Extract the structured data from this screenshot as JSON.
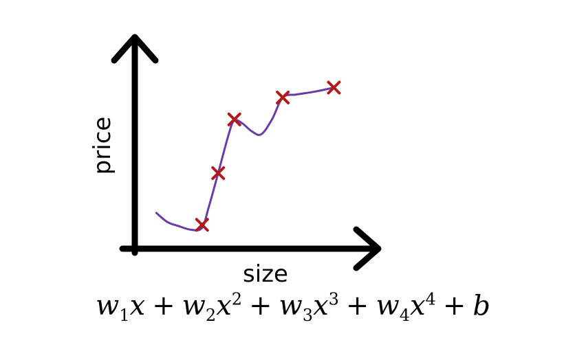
{
  "chart_data": {
    "type": "scatter",
    "xlabel": "size",
    "ylabel": "price",
    "points": [
      {
        "x": 1.0,
        "y": 0.2
      },
      {
        "x": 1.6,
        "y": 2.8
      },
      {
        "x": 2.2,
        "y": 5.5
      },
      {
        "x": 4.0,
        "y": 6.6
      },
      {
        "x": 5.9,
        "y": 7.1
      }
    ],
    "fit_curve": [
      {
        "x": -0.7,
        "y": 0.8
      },
      {
        "x": -0.3,
        "y": 0.35
      },
      {
        "x": 0.1,
        "y": 0.15
      },
      {
        "x": 0.6,
        "y": -0.05
      },
      {
        "x": 1.0,
        "y": 0.05
      },
      {
        "x": 1.25,
        "y": 1.1
      },
      {
        "x": 1.6,
        "y": 2.8
      },
      {
        "x": 2.0,
        "y": 4.8
      },
      {
        "x": 2.2,
        "y": 5.45
      },
      {
        "x": 2.5,
        "y": 5.3
      },
      {
        "x": 2.85,
        "y": 4.9
      },
      {
        "x": 3.2,
        "y": 4.75
      },
      {
        "x": 3.6,
        "y": 5.5
      },
      {
        "x": 4.0,
        "y": 6.6
      },
      {
        "x": 4.5,
        "y": 6.75
      },
      {
        "x": 5.2,
        "y": 6.9
      },
      {
        "x": 5.9,
        "y": 7.1
      }
    ],
    "xlim": [
      -1.5,
      7.5
    ],
    "ylim": [
      -1.0,
      9.5
    ],
    "colors": {
      "points": "#b01a1a",
      "curve": "#6a3aa8",
      "axes": "#000000"
    }
  },
  "formula": {
    "t1": "w",
    "s1": "1",
    "x1": "x",
    "p1": "",
    "op1": "+",
    "t2": "w",
    "s2": "2",
    "x2": "x",
    "p2": "2",
    "op2": "+",
    "t3": "w",
    "s3": "3",
    "x3": "x",
    "p3": "3",
    "op3": "+",
    "t4": "w",
    "s4": "4",
    "x4": "x",
    "p4": "4",
    "op4": "+",
    "b": "b"
  }
}
